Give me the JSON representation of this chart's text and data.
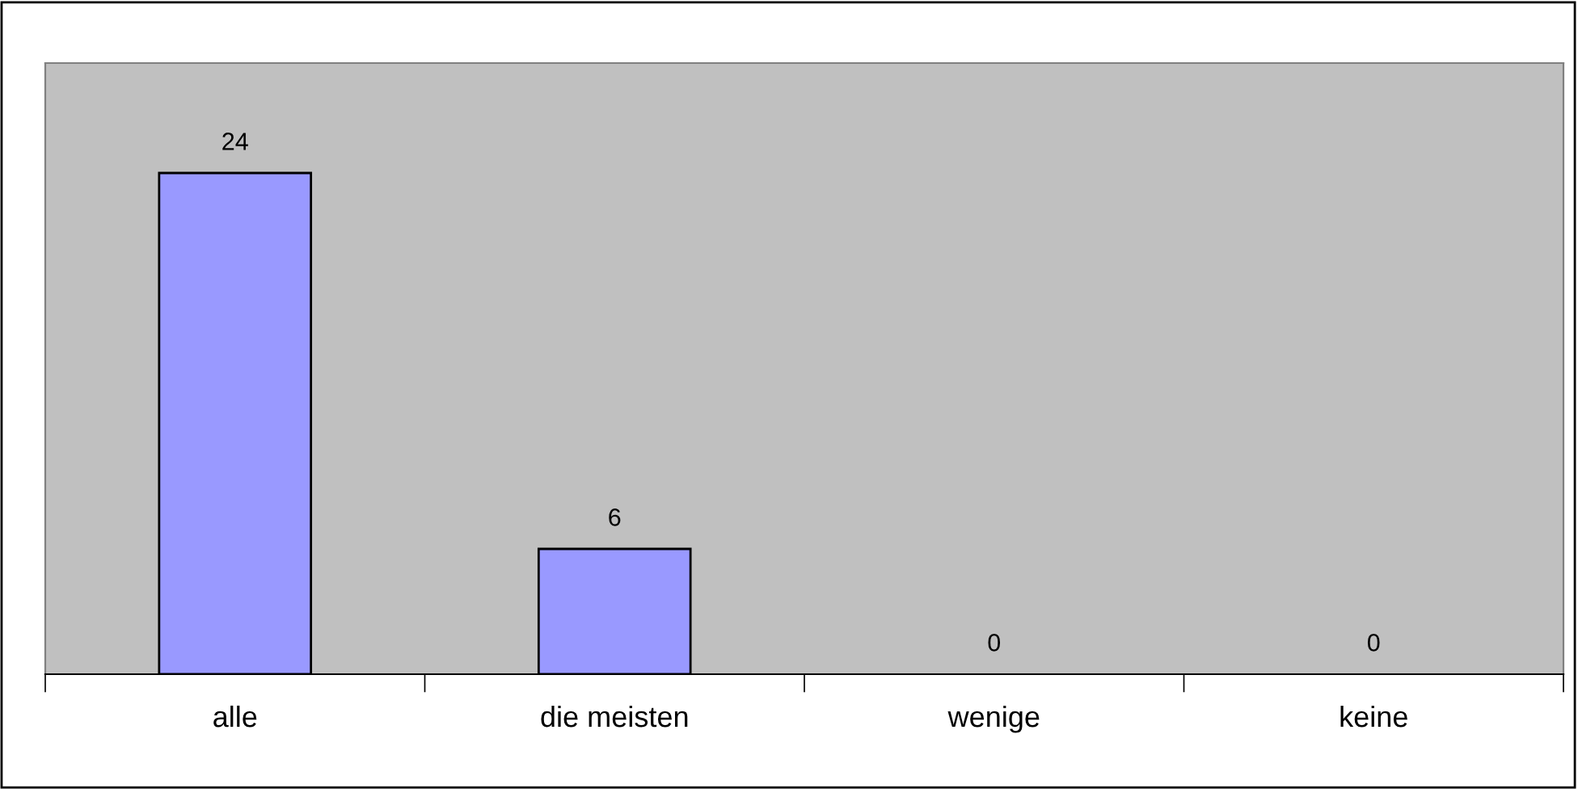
{
  "chart_data": {
    "type": "bar",
    "categories": [
      "alle",
      "die meisten",
      "wenige",
      "keine"
    ],
    "values": [
      24,
      6,
      0,
      0
    ],
    "color": "#9999ff",
    "data_labels": true,
    "grid": false,
    "legend": false
  }
}
